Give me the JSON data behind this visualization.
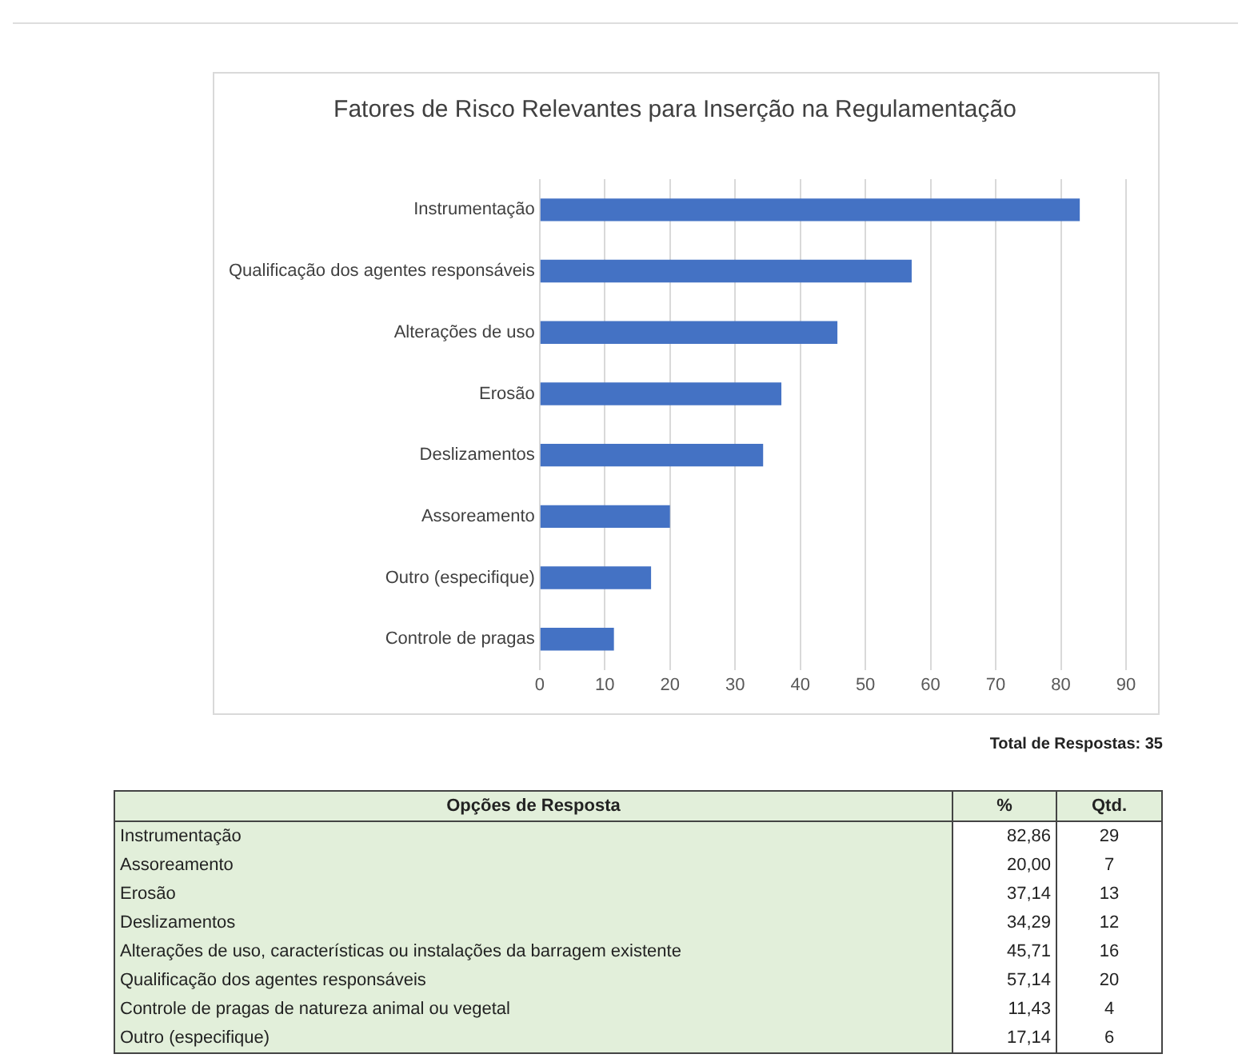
{
  "chart_data": [
    {
      "type": "bar",
      "orientation": "horizontal",
      "title": "Fatores de Risco Relevantes para Inserção na Regulamentação",
      "categories": [
        "Instrumentação",
        "Qualificação dos agentes responsáveis",
        "Alterações de uso",
        "Erosão",
        "Deslizamentos",
        "Assoreamento",
        "Outro (especifique)",
        "Controle de pragas"
      ],
      "values": [
        82.9,
        57.1,
        45.7,
        37.1,
        34.3,
        20,
        17.1,
        11.4
      ],
      "color": "#4472c4",
      "xlim": [
        0,
        90
      ],
      "xticks": [
        0,
        10,
        20,
        30,
        40,
        50,
        60,
        70,
        80,
        90
      ],
      "grid": "x",
      "legend": false,
      "annotations": [
        "Total de Respostas: 35"
      ]
    },
    {
      "type": "other",
      "xlabel": "Opções de Resposta",
      "categories": [
        "Instrumentação",
        "Assoreamento",
        "Erosão",
        "Deslizamentos",
        "Alterações de uso, características ou instalações da barragem existente",
        "Qualificação dos agentes responsáveis",
        "Controle de pragas de natureza animal ou vegetal",
        "Outro (especifique)"
      ],
      "series": [
        {
          "name": "%",
          "values": [
            82.86,
            20.0,
            37.14,
            34.29,
            45.71,
            57.14,
            11.43,
            17.14
          ],
          "value_labels": [
            "82,86",
            "20,00",
            "37,14",
            "34,29",
            "45,71",
            "57,14",
            "11,43",
            "17,14"
          ]
        },
        {
          "name": "Qtd.",
          "values": [
            29,
            7,
            13,
            12,
            16,
            20,
            4,
            6
          ],
          "value_labels": [
            "29",
            "7",
            "13",
            "12",
            "16",
            "20",
            "4",
            "6"
          ]
        }
      ]
    }
  ]
}
